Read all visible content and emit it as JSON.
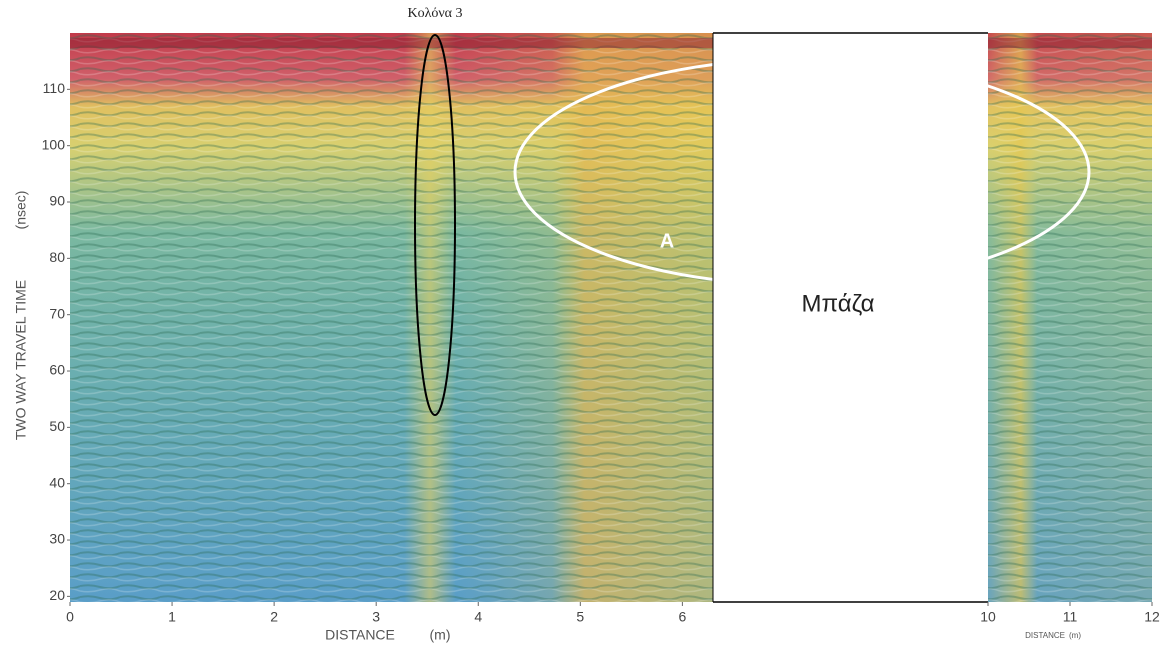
{
  "chart_data": [
    {
      "type": "radargram",
      "xlabel": "DISTANCE",
      "xunit": "(m)",
      "ylabel": "TWO WAY TRAVEL TIME",
      "yunit": "(nsec)",
      "xlim": [
        0,
        6.3
      ],
      "xticks": [
        0,
        1,
        2,
        3,
        4,
        5,
        6
      ],
      "ylim": [
        19,
        120
      ],
      "yticks": [
        20,
        30,
        40,
        50,
        60,
        70,
        80,
        90,
        100,
        110
      ],
      "annotations": [
        "Κολόνα 3",
        "A",
        "Μπάζα"
      ]
    },
    {
      "type": "radargram",
      "xlabel": "DISTANCE",
      "xunit": "(m)",
      "xlim": [
        10,
        12
      ],
      "xticks": [
        10,
        11,
        12
      ]
    }
  ]
}
